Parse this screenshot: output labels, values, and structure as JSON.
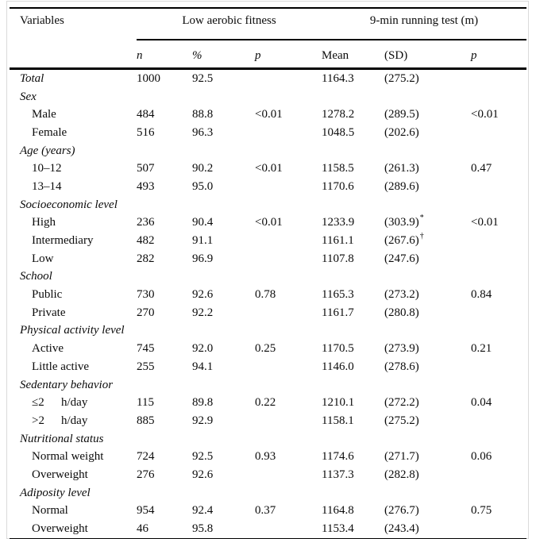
{
  "table": {
    "variables_header": "Variables",
    "spanners": [
      {
        "label": "Low aerobic fitness"
      },
      {
        "label": "9-min running test (m)"
      }
    ],
    "columns": [
      "n",
      "%",
      "p",
      "Mean",
      "(SD)",
      "p"
    ],
    "rows": [
      {
        "type": "total",
        "label": "Total",
        "n": "1000",
        "pct": "92.5",
        "mean": "1164.3",
        "sd": "(275.2)"
      },
      {
        "type": "group",
        "label": "Sex"
      },
      {
        "type": "item",
        "label": "Male",
        "n": "484",
        "pct": "88.8",
        "p": "<0.01",
        "mean": "1278.2",
        "sd": "(289.5)",
        "p2": "<0.01"
      },
      {
        "type": "item",
        "label": "Female",
        "n": "516",
        "pct": "96.3",
        "mean": "1048.5",
        "sd": "(202.6)"
      },
      {
        "type": "group",
        "label": "Age (years)"
      },
      {
        "type": "item",
        "label": "10–12",
        "n": "507",
        "pct": "90.2",
        "p": "<0.01",
        "mean": "1158.5",
        "sd": "(261.3)",
        "p2": "0.47"
      },
      {
        "type": "item",
        "label": "13–14",
        "n": "493",
        "pct": "95.0",
        "mean": "1170.6",
        "sd": "(289.6)"
      },
      {
        "type": "group",
        "label": "Socioeconomic level"
      },
      {
        "type": "item",
        "label": "High",
        "n": "236",
        "pct": "90.4",
        "p": "<0.01",
        "mean": "1233.9",
        "sd": "(303.9)",
        "sd_sup": "*",
        "p2": "<0.01"
      },
      {
        "type": "item",
        "label": "Intermediary",
        "n": "482",
        "pct": "91.1",
        "mean": "1161.1",
        "sd": "(267.6)",
        "sd_sup": "†"
      },
      {
        "type": "item",
        "label": "Low",
        "n": "282",
        "pct": "96.9",
        "mean": "1107.8",
        "sd": "(247.6)"
      },
      {
        "type": "group",
        "label": "School"
      },
      {
        "type": "item",
        "label": "Public",
        "n": "730",
        "pct": "92.6",
        "p": "0.78",
        "mean": "1165.3",
        "sd": "(273.2)",
        "p2": "0.84"
      },
      {
        "type": "item",
        "label": "Private",
        "n": "270",
        "pct": "92.2",
        "mean": "1161.7",
        "sd": "(280.8)"
      },
      {
        "type": "group",
        "label": "Physical activity level"
      },
      {
        "type": "item",
        "label": "Active",
        "n": "745",
        "pct": "92.0",
        "p": "0.25",
        "mean": "1170.5",
        "sd": "(273.9)",
        "p2": "0.21"
      },
      {
        "type": "item",
        "label": "Little active",
        "n": "255",
        "pct": "94.1",
        "mean": "1146.0",
        "sd": "(278.6)"
      },
      {
        "type": "group",
        "label": "Sedentary behavior"
      },
      {
        "type": "item",
        "label": "≤2",
        "label2": "h/day",
        "n": "115",
        "pct": "89.8",
        "p": "0.22",
        "mean": "1210.1",
        "sd": "(272.2)",
        "p2": "0.04"
      },
      {
        "type": "item",
        "label": ">2",
        "label2": "h/day",
        "n": "885",
        "pct": "92.9",
        "mean": "1158.1",
        "sd": "(275.2)"
      },
      {
        "type": "group",
        "label": "Nutritional status"
      },
      {
        "type": "item",
        "label": "Normal weight",
        "n": "724",
        "pct": "92.5",
        "p": "0.93",
        "mean": "1174.6",
        "sd": "(271.7)",
        "p2": "0.06"
      },
      {
        "type": "item",
        "label": "Overweight",
        "n": "276",
        "pct": "92.6",
        "mean": "1137.3",
        "sd": "(282.8)"
      },
      {
        "type": "group",
        "label": "Adiposity level"
      },
      {
        "type": "item",
        "label": "Normal",
        "n": "954",
        "pct": "92.4",
        "p": "0.37",
        "mean": "1164.8",
        "sd": "(276.7)",
        "p2": "0.75"
      },
      {
        "type": "item",
        "label": "Overweight",
        "n": "46",
        "pct": "95.8",
        "mean": "1153.4",
        "sd": "(243.4)"
      }
    ]
  }
}
